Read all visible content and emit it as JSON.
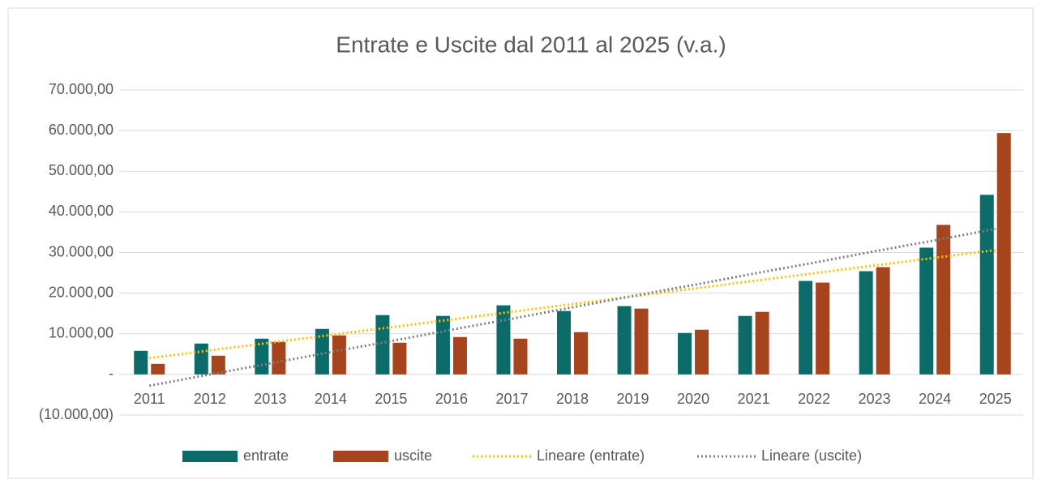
{
  "chart_data": {
    "type": "bar",
    "title": "Entrate e Uscite dal 2011 al 2025 (v.a.)",
    "categories": [
      "2011",
      "2012",
      "2013",
      "2014",
      "2015",
      "2016",
      "2017",
      "2018",
      "2019",
      "2020",
      "2021",
      "2022",
      "2023",
      "2024",
      "2025"
    ],
    "series": [
      {
        "name": "entrate",
        "type": "bar",
        "color": "#0b6b68",
        "values": [
          5800,
          7600,
          8800,
          11200,
          14600,
          14400,
          17000,
          15600,
          16800,
          10200,
          14400,
          23000,
          25400,
          31200,
          44200
        ]
      },
      {
        "name": "uscite",
        "type": "bar",
        "color": "#a5441d",
        "values": [
          2600,
          4600,
          8000,
          9600,
          7800,
          9200,
          8800,
          10400,
          16200,
          11000,
          15400,
          22600,
          26400,
          36800,
          59400
        ]
      },
      {
        "name": "Lineare (entrate)",
        "type": "trend",
        "color": "#ffc000",
        "values": [
          4000,
          5900,
          7800,
          9700,
          11600,
          13500,
          15400,
          17300,
          19200,
          21100,
          23000,
          24900,
          26800,
          28700,
          30600
        ]
      },
      {
        "name": "Lineare (uscite)",
        "type": "trend",
        "color": "#7f7f7f",
        "values": [
          -2800,
          0,
          2700,
          5500,
          8200,
          11000,
          13700,
          16500,
          19300,
          22000,
          24800,
          27500,
          30300,
          33000,
          35800
        ]
      }
    ],
    "ylim": [
      -10000,
      70000
    ],
    "yticks": [
      {
        "value": -10000,
        "label": "(10.000,00)"
      },
      {
        "value": 0,
        "label": "-"
      },
      {
        "value": 10000,
        "label": "10.000,00"
      },
      {
        "value": 20000,
        "label": "20.000,00"
      },
      {
        "value": 30000,
        "label": "30.000,00"
      },
      {
        "value": 40000,
        "label": "40.000,00"
      },
      {
        "value": 50000,
        "label": "50.000,00"
      },
      {
        "value": 60000,
        "label": "60.000,00"
      },
      {
        "value": 70000,
        "label": "70.000,00"
      }
    ],
    "grid": true,
    "legend": "bottom"
  }
}
